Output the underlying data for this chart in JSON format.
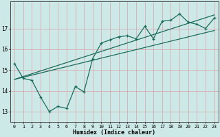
{
  "xlabel": "Humidex (Indice chaleur)",
  "ylabel": "",
  "bg_color": "#cce9e7",
  "grid_color": "#d8a0a8",
  "line_color": "#1a6b5a",
  "xlim": [
    -0.5,
    23.5
  ],
  "ylim": [
    12.5,
    18.3
  ],
  "yticks": [
    13,
    14,
    15,
    16,
    17
  ],
  "xticks": [
    0,
    1,
    2,
    3,
    4,
    5,
    6,
    7,
    8,
    9,
    10,
    11,
    12,
    13,
    14,
    15,
    16,
    17,
    18,
    19,
    20,
    21,
    22,
    23
  ],
  "data_line": [
    [
      0,
      15.3
    ],
    [
      1,
      14.6
    ],
    [
      2,
      14.5
    ],
    [
      3,
      13.7
    ],
    [
      4,
      13.0
    ],
    [
      5,
      13.25
    ],
    [
      6,
      13.15
    ],
    [
      7,
      14.2
    ],
    [
      8,
      13.95
    ],
    [
      9,
      15.55
    ],
    [
      10,
      16.3
    ],
    [
      11,
      16.45
    ],
    [
      12,
      16.6
    ],
    [
      13,
      16.65
    ],
    [
      14,
      16.5
    ],
    [
      15,
      17.1
    ],
    [
      16,
      16.5
    ],
    [
      17,
      17.35
    ],
    [
      18,
      17.4
    ],
    [
      19,
      17.7
    ],
    [
      20,
      17.3
    ],
    [
      21,
      17.2
    ],
    [
      22,
      17.0
    ],
    [
      23,
      17.5
    ]
  ],
  "reg_line1": [
    [
      0,
      14.55
    ],
    [
      23,
      17.65
    ]
  ],
  "reg_line2": [
    [
      0,
      14.55
    ],
    [
      23,
      16.9
    ]
  ]
}
